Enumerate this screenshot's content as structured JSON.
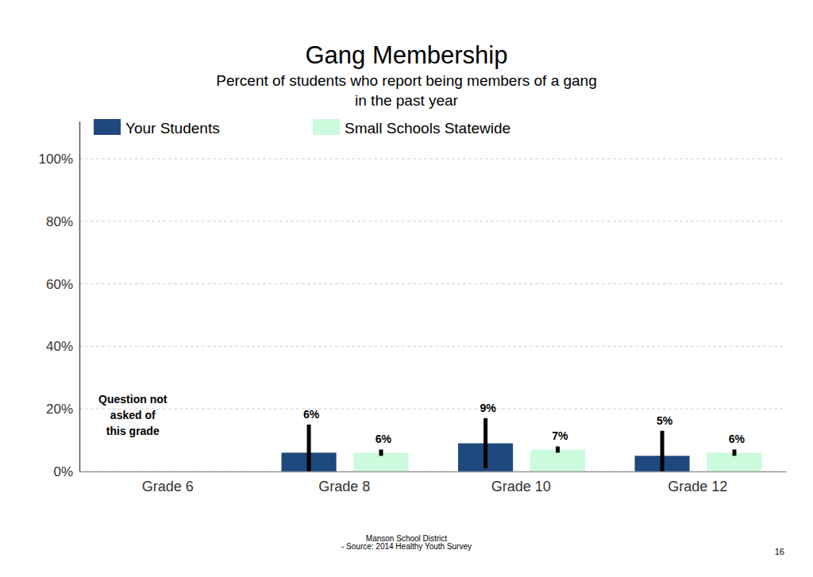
{
  "chart_data": {
    "type": "bar",
    "title": "Gang Membership",
    "subtitle": [
      "Percent of students who report being members of a gang",
      "in the past year"
    ],
    "categories": [
      "Grade 6",
      "Grade 8",
      "Grade 10",
      "Grade 12"
    ],
    "series": [
      {
        "name": "Your Students",
        "color": "#1f497d",
        "values": [
          null,
          6,
          9,
          5
        ],
        "errors": [
          null,
          9,
          8,
          8
        ],
        "value_labels": [
          null,
          "6%",
          "9%",
          "5%"
        ]
      },
      {
        "name": "Small Schools Statewide",
        "color": "#ccfadc",
        "values": [
          null,
          6,
          7,
          6
        ],
        "errors": [
          null,
          1,
          1,
          1
        ],
        "value_labels": [
          null,
          "6%",
          "7%",
          "6%"
        ]
      }
    ],
    "ylim": [
      0,
      112
    ],
    "yticks": [
      {
        "value": 0,
        "label": "0%"
      },
      {
        "value": 20,
        "label": "20%"
      },
      {
        "value": 40,
        "label": "40%"
      },
      {
        "value": 60,
        "label": "60%"
      },
      {
        "value": 80,
        "label": "80%"
      },
      {
        "value": 100,
        "label": "100%"
      }
    ],
    "grid": true,
    "legend": "top-left",
    "data_labels": true,
    "annotations": [
      {
        "category": "Grade 6",
        "text": [
          "Question not",
          "asked of",
          "this grade"
        ]
      }
    ],
    "source": [
      "Manson School District",
      "- Source: 2014 Healthy Youth Survey"
    ],
    "page_number": 16
  }
}
